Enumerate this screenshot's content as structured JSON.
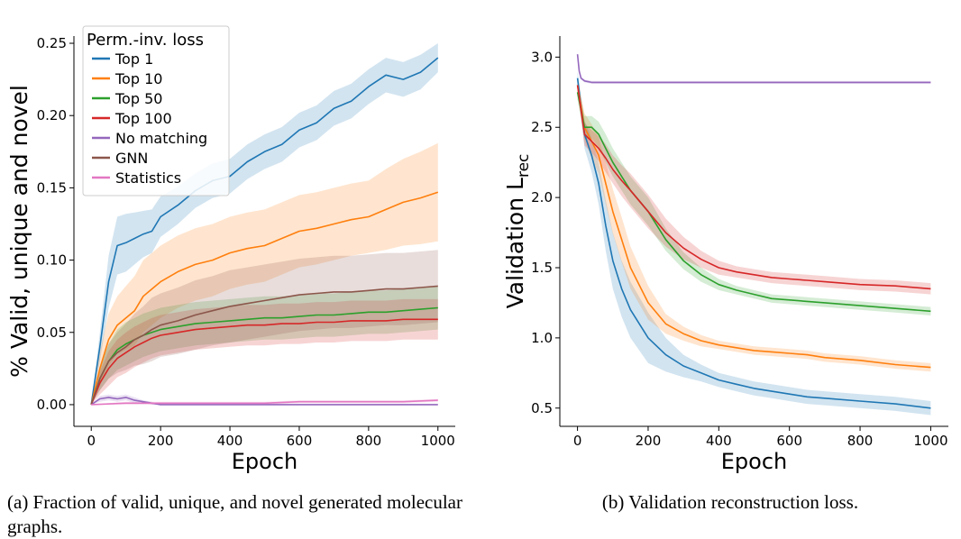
{
  "captions": {
    "a": "(a) Fraction of valid, unique, and novel generated molecular graphs.",
    "b": "(b) Validation reconstruction loss."
  },
  "chart_data": [
    {
      "id": "a",
      "type": "line",
      "xlabel": "Epoch",
      "ylabel": "% Valid, unique and novel",
      "xlim": [
        -50,
        1050
      ],
      "ylim": [
        -0.015,
        0.255
      ],
      "xticks": [
        0,
        200,
        400,
        600,
        800,
        1000
      ],
      "yticks": [
        0.0,
        0.05,
        0.1,
        0.15,
        0.2,
        0.25
      ],
      "ytick_labels": [
        "0.00",
        "0.05",
        "0.10",
        "0.15",
        "0.20",
        "0.25"
      ],
      "legend": {
        "title": "Perm.-inv. loss",
        "position": "top-left"
      },
      "series": [
        {
          "name": "Top 1",
          "color": "#1f77b4",
          "x": [
            0,
            25,
            50,
            75,
            100,
            125,
            150,
            175,
            200,
            250,
            300,
            350,
            400,
            450,
            500,
            550,
            600,
            650,
            700,
            750,
            800,
            850,
            900,
            950,
            1000
          ],
          "y": [
            0.0,
            0.04,
            0.085,
            0.11,
            0.112,
            0.115,
            0.118,
            0.12,
            0.13,
            0.138,
            0.148,
            0.155,
            0.158,
            0.168,
            0.175,
            0.18,
            0.19,
            0.195,
            0.205,
            0.21,
            0.22,
            0.228,
            0.225,
            0.23,
            0.24
          ],
          "band": [
            0.0,
            0.01,
            0.018,
            0.02,
            0.02,
            0.018,
            0.016,
            0.015,
            0.014,
            0.013,
            0.012,
            0.012,
            0.012,
            0.012,
            0.012,
            0.012,
            0.012,
            0.012,
            0.012,
            0.012,
            0.012,
            0.012,
            0.012,
            0.012,
            0.01
          ]
        },
        {
          "name": "Top 10",
          "color": "#ff7f0e",
          "x": [
            0,
            25,
            50,
            75,
            100,
            125,
            150,
            175,
            200,
            250,
            300,
            350,
            400,
            450,
            500,
            550,
            600,
            650,
            700,
            750,
            800,
            850,
            900,
            950,
            1000
          ],
          "y": [
            0.0,
            0.025,
            0.045,
            0.055,
            0.06,
            0.065,
            0.075,
            0.08,
            0.085,
            0.092,
            0.097,
            0.1,
            0.105,
            0.108,
            0.11,
            0.115,
            0.12,
            0.122,
            0.125,
            0.128,
            0.13,
            0.135,
            0.14,
            0.143,
            0.147
          ],
          "band": [
            0.0,
            0.012,
            0.018,
            0.02,
            0.022,
            0.024,
            0.025,
            0.025,
            0.025,
            0.025,
            0.025,
            0.025,
            0.025,
            0.025,
            0.025,
            0.025,
            0.025,
            0.025,
            0.025,
            0.025,
            0.025,
            0.028,
            0.03,
            0.032,
            0.034
          ]
        },
        {
          "name": "Top 50",
          "color": "#2ca02c",
          "x": [
            0,
            25,
            50,
            75,
            100,
            125,
            150,
            175,
            200,
            250,
            300,
            350,
            400,
            450,
            500,
            550,
            600,
            650,
            700,
            750,
            800,
            850,
            900,
            950,
            1000
          ],
          "y": [
            0.0,
            0.018,
            0.03,
            0.038,
            0.042,
            0.045,
            0.048,
            0.05,
            0.052,
            0.054,
            0.056,
            0.057,
            0.058,
            0.059,
            0.06,
            0.06,
            0.061,
            0.062,
            0.062,
            0.063,
            0.064,
            0.064,
            0.065,
            0.066,
            0.067
          ],
          "band": [
            0.0,
            0.008,
            0.012,
            0.014,
            0.015,
            0.015,
            0.015,
            0.015,
            0.015,
            0.015,
            0.015,
            0.015,
            0.015,
            0.015,
            0.015,
            0.015,
            0.015,
            0.015,
            0.015,
            0.015,
            0.015,
            0.015,
            0.015,
            0.015,
            0.015
          ]
        },
        {
          "name": "Top 100",
          "color": "#d62728",
          "x": [
            0,
            25,
            50,
            75,
            100,
            125,
            150,
            175,
            200,
            250,
            300,
            350,
            400,
            450,
            500,
            550,
            600,
            650,
            700,
            750,
            800,
            850,
            900,
            950,
            1000
          ],
          "y": [
            0.0,
            0.015,
            0.025,
            0.032,
            0.036,
            0.04,
            0.043,
            0.046,
            0.048,
            0.05,
            0.052,
            0.053,
            0.054,
            0.055,
            0.055,
            0.056,
            0.056,
            0.057,
            0.057,
            0.058,
            0.058,
            0.058,
            0.059,
            0.059,
            0.059
          ],
          "band": [
            0.0,
            0.008,
            0.012,
            0.013,
            0.014,
            0.014,
            0.014,
            0.014,
            0.014,
            0.014,
            0.014,
            0.014,
            0.014,
            0.014,
            0.014,
            0.014,
            0.014,
            0.014,
            0.014,
            0.014,
            0.014,
            0.014,
            0.014,
            0.014,
            0.014
          ]
        },
        {
          "name": "No matching",
          "color": "#9467bd",
          "x": [
            0,
            25,
            50,
            75,
            100,
            125,
            150,
            175,
            200,
            300,
            400,
            500,
            600,
            700,
            800,
            900,
            1000
          ],
          "y": [
            0.0,
            0.004,
            0.005,
            0.004,
            0.005,
            0.003,
            0.002,
            0.001,
            0.0,
            0.0,
            0.0,
            0.0,
            0.0,
            0.0,
            0.0,
            0.0,
            0.0
          ],
          "band": [
            0.0,
            0.002,
            0.002,
            0.002,
            0.002,
            0.002,
            0.001,
            0.001,
            0.0,
            0.0,
            0.0,
            0.0,
            0.0,
            0.0,
            0.0,
            0.0,
            0.0
          ]
        },
        {
          "name": "GNN",
          "color": "#8c564b",
          "x": [
            0,
            25,
            50,
            75,
            100,
            125,
            150,
            175,
            200,
            250,
            300,
            350,
            400,
            450,
            500,
            550,
            600,
            650,
            700,
            750,
            800,
            850,
            900,
            950,
            1000
          ],
          "y": [
            0.0,
            0.018,
            0.03,
            0.036,
            0.04,
            0.045,
            0.048,
            0.052,
            0.055,
            0.058,
            0.062,
            0.065,
            0.068,
            0.07,
            0.072,
            0.074,
            0.076,
            0.077,
            0.078,
            0.078,
            0.079,
            0.08,
            0.08,
            0.081,
            0.082
          ],
          "band": [
            0.0,
            0.008,
            0.012,
            0.014,
            0.016,
            0.018,
            0.02,
            0.022,
            0.022,
            0.023,
            0.024,
            0.024,
            0.025,
            0.025,
            0.025,
            0.025,
            0.025,
            0.025,
            0.025,
            0.025,
            0.025,
            0.025,
            0.025,
            0.025,
            0.025
          ]
        },
        {
          "name": "Statistics",
          "color": "#e377c2",
          "x": [
            0,
            100,
            200,
            300,
            400,
            500,
            600,
            700,
            800,
            900,
            1000
          ],
          "y": [
            0.0,
            0.001,
            0.001,
            0.001,
            0.001,
            0.001,
            0.002,
            0.002,
            0.002,
            0.002,
            0.003
          ],
          "band": [
            0.0,
            0.001,
            0.001,
            0.001,
            0.001,
            0.001,
            0.001,
            0.001,
            0.001,
            0.001,
            0.001
          ]
        }
      ]
    },
    {
      "id": "b",
      "type": "line",
      "xlabel": "Epoch",
      "ylabel": "Validation L",
      "ylabel_subscript": "rec",
      "xlim": [
        -50,
        1050
      ],
      "ylim": [
        0.37,
        3.15
      ],
      "xticks": [
        0,
        200,
        400,
        600,
        800,
        1000
      ],
      "yticks": [
        0.5,
        1.0,
        1.5,
        2.0,
        2.5,
        3.0
      ],
      "ytick_labels": [
        "0.5",
        "1.0",
        "1.5",
        "2.0",
        "2.5",
        "3.0"
      ],
      "series": [
        {
          "name": "Top 1",
          "color": "#1f77b4",
          "x": [
            0,
            20,
            40,
            60,
            80,
            100,
            125,
            150,
            200,
            250,
            300,
            350,
            400,
            450,
            500,
            550,
            600,
            650,
            700,
            800,
            900,
            1000
          ],
          "y": [
            2.85,
            2.45,
            2.3,
            2.1,
            1.8,
            1.55,
            1.35,
            1.2,
            1.0,
            0.88,
            0.8,
            0.75,
            0.7,
            0.67,
            0.64,
            0.62,
            0.6,
            0.58,
            0.57,
            0.55,
            0.53,
            0.5
          ],
          "band": [
            0.05,
            0.1,
            0.12,
            0.15,
            0.18,
            0.2,
            0.2,
            0.2,
            0.18,
            0.12,
            0.08,
            0.06,
            0.05,
            0.05,
            0.05,
            0.05,
            0.05,
            0.05,
            0.05,
            0.05,
            0.05,
            0.05
          ]
        },
        {
          "name": "Top 10",
          "color": "#ff7f0e",
          "x": [
            0,
            20,
            40,
            60,
            80,
            100,
            125,
            150,
            200,
            250,
            300,
            350,
            400,
            450,
            500,
            550,
            600,
            650,
            700,
            800,
            900,
            1000
          ],
          "y": [
            2.8,
            2.5,
            2.4,
            2.3,
            2.1,
            1.9,
            1.7,
            1.5,
            1.25,
            1.1,
            1.03,
            0.98,
            0.95,
            0.93,
            0.91,
            0.9,
            0.89,
            0.88,
            0.86,
            0.84,
            0.81,
            0.79
          ],
          "band": [
            0.05,
            0.1,
            0.12,
            0.13,
            0.15,
            0.16,
            0.16,
            0.15,
            0.12,
            0.07,
            0.05,
            0.04,
            0.03,
            0.03,
            0.03,
            0.03,
            0.03,
            0.03,
            0.03,
            0.03,
            0.03,
            0.03
          ]
        },
        {
          "name": "Top 50",
          "color": "#2ca02c",
          "x": [
            0,
            20,
            40,
            60,
            80,
            100,
            125,
            150,
            200,
            250,
            300,
            350,
            400,
            450,
            500,
            550,
            600,
            650,
            700,
            800,
            900,
            1000
          ],
          "y": [
            2.75,
            2.5,
            2.5,
            2.45,
            2.35,
            2.25,
            2.15,
            2.05,
            1.9,
            1.7,
            1.55,
            1.45,
            1.38,
            1.34,
            1.31,
            1.28,
            1.27,
            1.26,
            1.25,
            1.23,
            1.21,
            1.19
          ],
          "band": [
            0.05,
            0.08,
            0.08,
            0.09,
            0.1,
            0.1,
            0.1,
            0.1,
            0.1,
            0.08,
            0.06,
            0.05,
            0.04,
            0.03,
            0.03,
            0.03,
            0.03,
            0.03,
            0.03,
            0.03,
            0.03,
            0.03
          ]
        },
        {
          "name": "Top 100",
          "color": "#d62728",
          "x": [
            0,
            20,
            40,
            60,
            80,
            100,
            125,
            150,
            200,
            250,
            300,
            350,
            400,
            450,
            500,
            550,
            600,
            650,
            700,
            800,
            900,
            1000
          ],
          "y": [
            2.8,
            2.45,
            2.4,
            2.35,
            2.28,
            2.2,
            2.12,
            2.05,
            1.9,
            1.75,
            1.64,
            1.56,
            1.5,
            1.47,
            1.45,
            1.43,
            1.42,
            1.41,
            1.4,
            1.38,
            1.37,
            1.35
          ],
          "band": [
            0.05,
            0.08,
            0.08,
            0.09,
            0.1,
            0.1,
            0.11,
            0.12,
            0.12,
            0.1,
            0.08,
            0.06,
            0.05,
            0.04,
            0.04,
            0.04,
            0.04,
            0.04,
            0.04,
            0.04,
            0.04,
            0.04
          ]
        },
        {
          "name": "No matching",
          "color": "#9467bd",
          "x": [
            0,
            5,
            10,
            20,
            40,
            100,
            200,
            300,
            400,
            500,
            600,
            700,
            800,
            900,
            1000
          ],
          "y": [
            3.02,
            2.9,
            2.85,
            2.83,
            2.82,
            2.82,
            2.82,
            2.82,
            2.82,
            2.82,
            2.82,
            2.82,
            2.82,
            2.82,
            2.82
          ],
          "band": [
            0.01,
            0.01,
            0.01,
            0.01,
            0.01,
            0.01,
            0.01,
            0.01,
            0.01,
            0.01,
            0.01,
            0.01,
            0.01,
            0.01,
            0.01
          ]
        }
      ]
    }
  ]
}
